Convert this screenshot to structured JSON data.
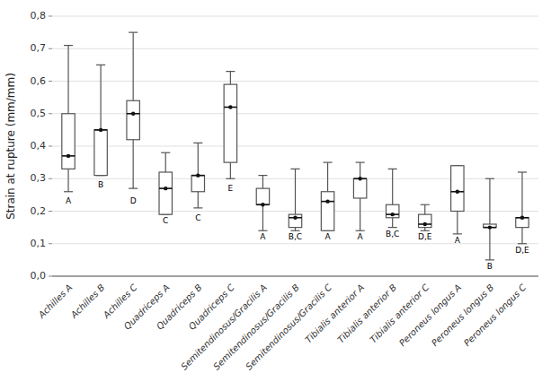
{
  "chart_data": {
    "type": "box",
    "ylabel": "Strain at rupture (mm/mm)",
    "categories": [
      "Achilles A",
      "Achilles B",
      "Achilles C",
      "Quadriceps A",
      "Quadriceps B",
      "Quadriceps C",
      "Semitendinosus/Gracilis A",
      "Semitendinosus/Gracilis B",
      "Semitendinosus/Gracilis C",
      "Tibialis anterior A",
      "Tibialis anterior B",
      "Tibialis anterior C",
      "Peroneus longus A",
      "Peroneus longus B",
      "Peroneus longus C"
    ],
    "boxes": [
      {
        "q1": 0.33,
        "median": 0.37,
        "q3": 0.5,
        "whisker_low": 0.26,
        "whisker_high": 0.71
      },
      {
        "q1": 0.31,
        "median": 0.45,
        "q3": 0.45,
        "whisker_low": 0.31,
        "whisker_high": 0.65
      },
      {
        "q1": 0.42,
        "median": 0.5,
        "q3": 0.54,
        "whisker_low": 0.27,
        "whisker_high": 0.75
      },
      {
        "q1": 0.19,
        "median": 0.27,
        "q3": 0.32,
        "whisker_low": 0.19,
        "whisker_high": 0.38
      },
      {
        "q1": 0.26,
        "median": 0.31,
        "q3": 0.31,
        "whisker_low": 0.21,
        "whisker_high": 0.41
      },
      {
        "q1": 0.35,
        "median": 0.52,
        "q3": 0.59,
        "whisker_low": 0.3,
        "whisker_high": 0.63
      },
      {
        "q1": 0.22,
        "median": 0.22,
        "q3": 0.27,
        "whisker_low": 0.14,
        "whisker_high": 0.31
      },
      {
        "q1": 0.15,
        "median": 0.18,
        "q3": 0.19,
        "whisker_low": 0.14,
        "whisker_high": 0.33
      },
      {
        "q1": 0.14,
        "median": 0.23,
        "q3": 0.26,
        "whisker_low": 0.14,
        "whisker_high": 0.35
      },
      {
        "q1": 0.24,
        "median": 0.3,
        "q3": 0.3,
        "whisker_low": 0.14,
        "whisker_high": 0.35
      },
      {
        "q1": 0.18,
        "median": 0.19,
        "q3": 0.22,
        "whisker_low": 0.15,
        "whisker_high": 0.33
      },
      {
        "q1": 0.15,
        "median": 0.16,
        "q3": 0.19,
        "whisker_low": 0.14,
        "whisker_high": 0.22
      },
      {
        "q1": 0.2,
        "median": 0.26,
        "q3": 0.34,
        "whisker_low": 0.13,
        "whisker_high": 0.34
      },
      {
        "q1": 0.15,
        "median": 0.15,
        "q3": 0.16,
        "whisker_low": 0.05,
        "whisker_high": 0.3
      },
      {
        "q1": 0.15,
        "median": 0.18,
        "q3": 0.18,
        "whisker_low": 0.1,
        "whisker_high": 0.32
      }
    ],
    "annotations": [
      {
        "text": "A",
        "x": "Achilles A",
        "y": 0.24
      },
      {
        "text": "B",
        "x": "Achilles B",
        "y": 0.29
      },
      {
        "text": "D",
        "x": "Achilles C",
        "y": 0.24
      },
      {
        "text": "C",
        "x": "Quadriceps A",
        "y": 0.18
      },
      {
        "text": "C",
        "x": "Quadriceps B",
        "y": 0.19
      },
      {
        "text": "E",
        "x": "Quadriceps C",
        "y": 0.28
      },
      {
        "text": "A",
        "x": "Semitendinosus/Gracilis A",
        "y": 0.13
      },
      {
        "text": "B,C",
        "x": "Semitendinosus/Gracilis B",
        "y": 0.13
      },
      {
        "text": "A",
        "x": "Semitendinosus/Gracilis C",
        "y": 0.13
      },
      {
        "text": "A",
        "x": "Tibialis anterior A",
        "y": 0.13
      },
      {
        "text": "B,C",
        "x": "Tibialis anterior B",
        "y": 0.14
      },
      {
        "text": "D,E",
        "x": "Tibialis anterior C",
        "y": 0.13
      },
      {
        "text": "A",
        "x": "Peroneus longus A",
        "y": 0.12
      },
      {
        "text": "B",
        "x": "Peroneus longus B",
        "y": 0.04
      },
      {
        "text": "D,E",
        "x": "Peroneus longus C",
        "y": 0.09
      }
    ],
    "ylim": [
      0.0,
      0.8
    ],
    "yticks": [
      {
        "value": 0.0,
        "label": "0,0"
      },
      {
        "value": 0.1,
        "label": "0,1"
      },
      {
        "value": 0.2,
        "label": "0,2"
      },
      {
        "value": 0.3,
        "label": "0,3"
      },
      {
        "value": 0.4,
        "label": "0,4"
      },
      {
        "value": 0.5,
        "label": "0,5"
      },
      {
        "value": 0.6,
        "label": "0,6"
      },
      {
        "value": 0.7,
        "label": "0,7"
      },
      {
        "value": 0.8,
        "label": "0,8"
      }
    ],
    "grid": true,
    "color": "#555555"
  }
}
